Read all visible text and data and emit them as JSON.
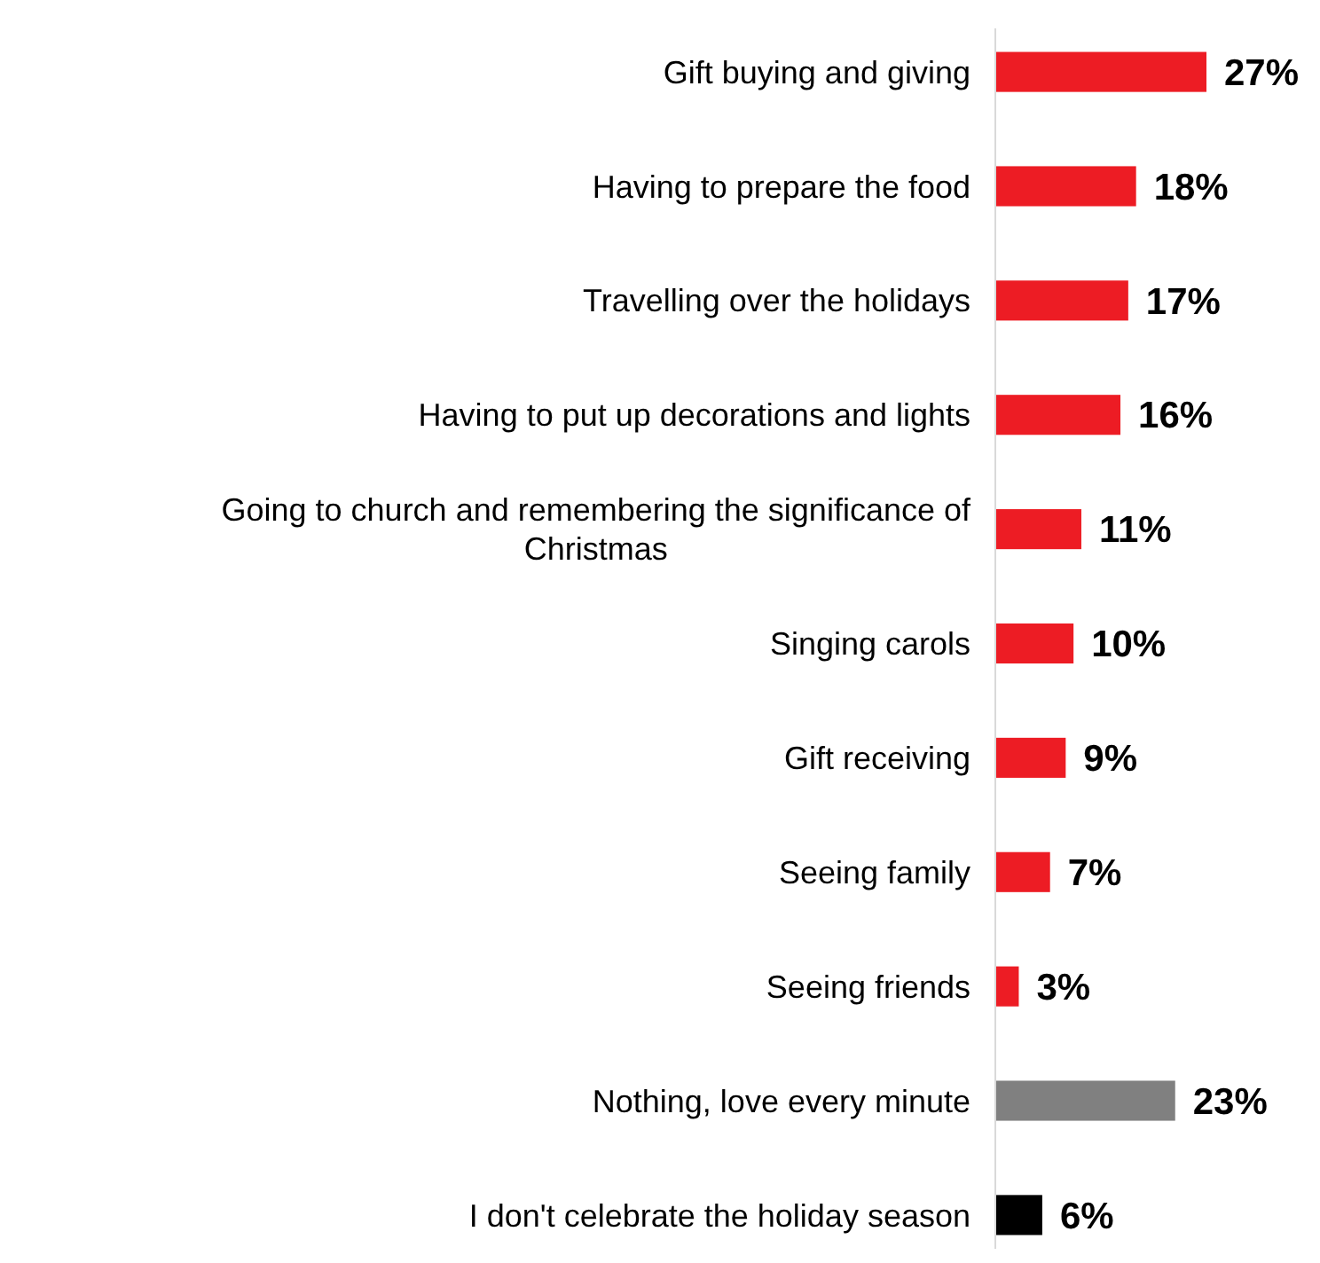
{
  "chart_data": {
    "type": "bar",
    "orientation": "horizontal",
    "categories": [
      "Gift buying and giving",
      "Having to prepare the food",
      "Travelling over the holidays",
      "Having to put up decorations and lights",
      "Going to church and remembering the significance of Christmas",
      "Singing carols",
      "Gift receiving",
      "Seeing family",
      "Seeing friends",
      "Nothing, love every minute",
      "I don't celebrate the holiday season"
    ],
    "values": [
      27,
      18,
      17,
      16,
      11,
      10,
      9,
      7,
      3,
      23,
      6
    ],
    "value_labels": [
      "27%",
      "18%",
      "17%",
      "16%",
      "11%",
      "10%",
      "9%",
      "7%",
      "3%",
      "23%",
      "6%"
    ],
    "colors": [
      "#ed1c24",
      "#ed1c24",
      "#ed1c24",
      "#ed1c24",
      "#ed1c24",
      "#ed1c24",
      "#ed1c24",
      "#ed1c24",
      "#ed1c24",
      "#808080",
      "#000000"
    ]
  }
}
